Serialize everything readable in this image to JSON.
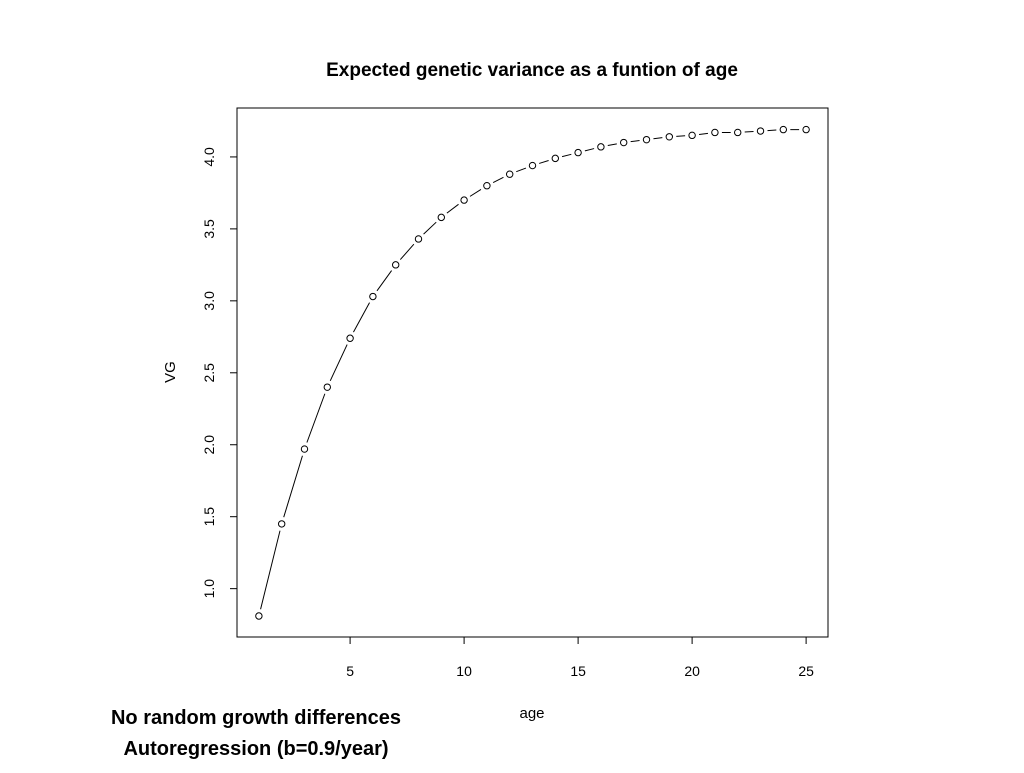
{
  "chart_data": {
    "type": "line",
    "title": "Expected genetic variance as a funtion of age",
    "x_label": "age",
    "y_label": "VG",
    "annotations": [
      "No random growth differences",
      "Autoregression (b=0.9/year)"
    ],
    "x": [
      1,
      2,
      3,
      4,
      5,
      6,
      7,
      8,
      9,
      10,
      11,
      12,
      13,
      14,
      15,
      16,
      17,
      18,
      19,
      20,
      21,
      22,
      23,
      24,
      25
    ],
    "series": [
      {
        "color": "#000000",
        "values": [
          0.81,
          1.45,
          1.97,
          2.4,
          2.74,
          3.03,
          3.25,
          3.43,
          3.58,
          3.7,
          3.8,
          3.88,
          3.94,
          3.99,
          4.03,
          4.07,
          4.1,
          4.12,
          4.14,
          4.15,
          4.17,
          4.17,
          4.18,
          4.19,
          4.19
        ]
      }
    ],
    "xlim": [
      0.04,
      25.96
    ],
    "xticks": [
      5,
      10,
      15,
      20,
      25
    ],
    "ylim": [
      0.664,
      4.34
    ],
    "yticks": [
      {
        "value": 1,
        "label": "1.0"
      },
      1.5,
      {
        "value": 2,
        "label": "2.0"
      },
      2.5,
      {
        "value": 3,
        "label": "3.0"
      },
      3.5,
      {
        "value": 4,
        "label": "4.0"
      }
    ]
  }
}
